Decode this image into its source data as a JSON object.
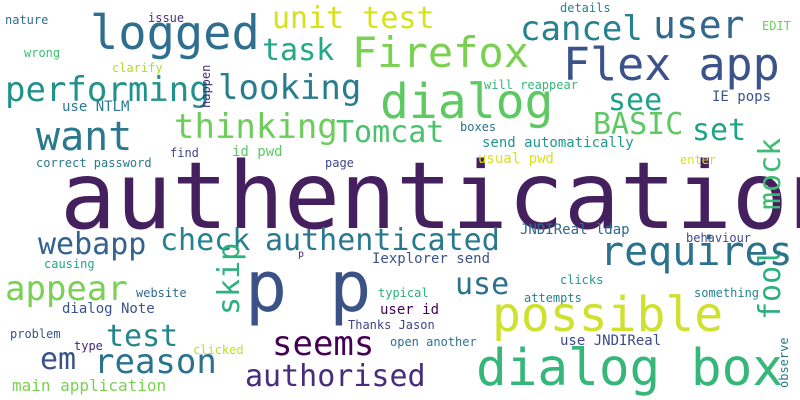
{
  "words": [
    {
      "text": "authentication",
      "color": "#44205e"
    },
    {
      "text": "p p",
      "color": "#3b5287"
    },
    {
      "text": "possible",
      "color": "#cfe12f"
    },
    {
      "text": "dialog box",
      "color": "#35b779"
    },
    {
      "text": "Flex app",
      "color": "#3b528b"
    },
    {
      "text": "dialog",
      "color": "#5ec962"
    },
    {
      "text": "logged",
      "color": "#2e6e8e"
    },
    {
      "text": "Firefox",
      "color": "#7ad151"
    },
    {
      "text": "user",
      "color": "#31688e"
    },
    {
      "text": "cancel",
      "color": "#26828e"
    },
    {
      "text": "unit test",
      "color": "#d8e219"
    },
    {
      "text": "task",
      "color": "#22a884"
    },
    {
      "text": "performing",
      "color": "#21918c"
    },
    {
      "text": "looking",
      "color": "#287d8e"
    },
    {
      "text": "want",
      "color": "#2a788e"
    },
    {
      "text": "thinking",
      "color": "#6ccd5a"
    },
    {
      "text": "Tomcat",
      "color": "#4ac16d"
    },
    {
      "text": "see",
      "color": "#1fa088"
    },
    {
      "text": "BASIC",
      "color": "#5ec962"
    },
    {
      "text": "set",
      "color": "#20a386"
    },
    {
      "text": "mock",
      "color": "#3fbc73"
    },
    {
      "text": "fool",
      "color": "#2ab07f"
    },
    {
      "text": "requires",
      "color": "#2c728e"
    },
    {
      "text": "webapp",
      "color": "#33638d"
    },
    {
      "text": "check",
      "color": "#26828e"
    },
    {
      "text": "authenticated",
      "color": "#2a788e"
    },
    {
      "text": "appear",
      "color": "#7ad151"
    },
    {
      "text": "skip",
      "color": "#2db27d"
    },
    {
      "text": "use",
      "color": "#2c728e"
    },
    {
      "text": "test",
      "color": "#25858e"
    },
    {
      "text": "reason",
      "color": "#2c728e"
    },
    {
      "text": "em",
      "color": "#3b528b"
    },
    {
      "text": "seems",
      "color": "#440154"
    },
    {
      "text": "authorised",
      "color": "#472d7b"
    },
    {
      "text": "nature",
      "color": "#2d708e"
    },
    {
      "text": "issue",
      "color": "#46327e"
    },
    {
      "text": "details",
      "color": "#26828e"
    },
    {
      "text": "EDIT",
      "color": "#6ccd5a"
    },
    {
      "text": "wrong",
      "color": "#3fbc73"
    },
    {
      "text": "clarify",
      "color": "#addc30"
    },
    {
      "text": "happen",
      "color": "#482878"
    },
    {
      "text": "will reappear",
      "color": "#35b779"
    },
    {
      "text": "IE pops",
      "color": "#3b528b"
    },
    {
      "text": "use NTLM",
      "color": "#2a788e"
    },
    {
      "text": "id pwd",
      "color": "#5ec962"
    },
    {
      "text": "boxes",
      "color": "#2c728e"
    },
    {
      "text": "send automatically",
      "color": "#1f988b"
    },
    {
      "text": "find",
      "color": "#404688"
    },
    {
      "text": "correct password",
      "color": "#2a788e"
    },
    {
      "text": "page",
      "color": "#3e4989"
    },
    {
      "text": "usual pwd",
      "color": "#d8e219"
    },
    {
      "text": "enter",
      "color": "#d8e219"
    },
    {
      "text": "JNDIReal ldap",
      "color": "#31688e"
    },
    {
      "text": "behaviour",
      "color": "#3e4989"
    },
    {
      "text": "Iexplorer send",
      "color": "#3b528b"
    },
    {
      "text": "causing",
      "color": "#22a884"
    },
    {
      "text": "p",
      "color": "#482878"
    },
    {
      "text": "website",
      "color": "#31688e"
    },
    {
      "text": "clicks",
      "color": "#1f988b"
    },
    {
      "text": "something",
      "color": "#25858e"
    },
    {
      "text": "typical",
      "color": "#2db27d"
    },
    {
      "text": "attempts",
      "color": "#26828e"
    },
    {
      "text": "dialog Note",
      "color": "#3b528b"
    },
    {
      "text": "user id",
      "color": "#440154"
    },
    {
      "text": "Thanks Jason",
      "color": "#414487"
    },
    {
      "text": "problem",
      "color": "#3b528b"
    },
    {
      "text": "type",
      "color": "#482878"
    },
    {
      "text": "clicked",
      "color": "#bddf26"
    },
    {
      "text": "open another",
      "color": "#2d708e"
    },
    {
      "text": "use JNDIReal",
      "color": "#3e4989"
    },
    {
      "text": "main application",
      "color": "#7ad151"
    },
    {
      "text": "observe",
      "color": "#2a788e"
    }
  ]
}
